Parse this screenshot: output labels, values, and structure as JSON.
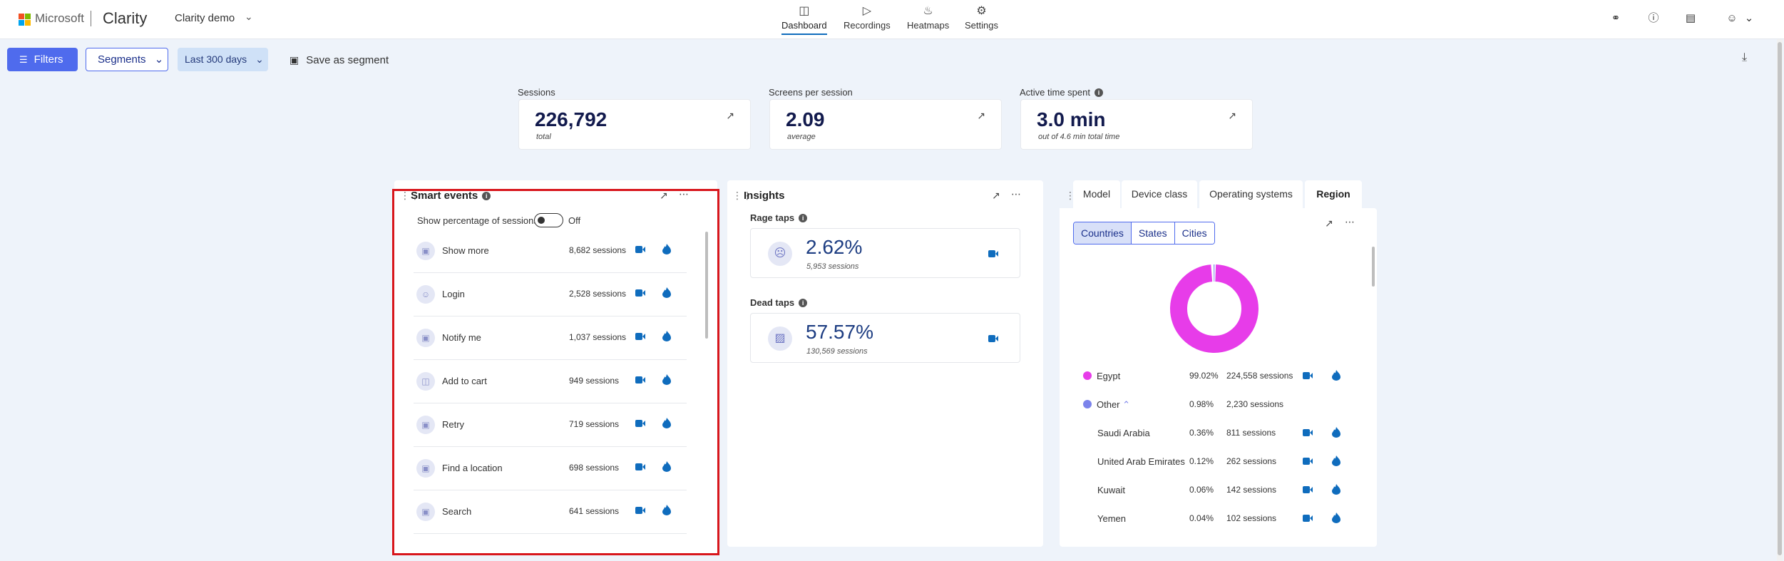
{
  "header": {
    "brand_ms": "Microsoft",
    "brand_app": "Clarity",
    "project": "Clarity demo",
    "nav": [
      {
        "label": "Dashboard",
        "icon": "dashboard-icon",
        "active": true
      },
      {
        "label": "Recordings",
        "icon": "video-icon",
        "active": false
      },
      {
        "label": "Heatmaps",
        "icon": "flame-icon",
        "active": false
      },
      {
        "label": "Settings",
        "icon": "gear-icon",
        "active": false
      }
    ]
  },
  "toolbar": {
    "filters": "Filters",
    "segments": "Segments",
    "date_range": "Last 300 days",
    "save_segment": "Save as segment"
  },
  "kpis": [
    {
      "label": "Sessions",
      "value": "226,792",
      "sub": "total"
    },
    {
      "label": "Screens per session",
      "value": "2.09",
      "sub": "average"
    },
    {
      "label": "Active time spent",
      "value": "3.0 min",
      "sub": "out of 4.6 min total time"
    }
  ],
  "smart_events": {
    "title": "Smart events",
    "toggle_label": "Show percentage of sessions",
    "toggle_state": "Off",
    "rows": [
      {
        "name": "Show more",
        "count": "8,682 sessions"
      },
      {
        "name": "Login",
        "count": "2,528 sessions"
      },
      {
        "name": "Notify me",
        "count": "1,037 sessions"
      },
      {
        "name": "Add to cart",
        "count": "949 sessions"
      },
      {
        "name": "Retry",
        "count": "719 sessions"
      },
      {
        "name": "Find a location",
        "count": "698 sessions"
      },
      {
        "name": "Search",
        "count": "641 sessions"
      }
    ]
  },
  "insights": {
    "title": "Insights",
    "rage": {
      "label": "Rage taps",
      "value": "2.62%",
      "sub": "5,953 sessions"
    },
    "dead": {
      "label": "Dead taps",
      "value": "57.57%",
      "sub": "130,569 sessions"
    }
  },
  "region": {
    "tabs": [
      "Model",
      "Device class",
      "Operating systems",
      "Region"
    ],
    "active_tab": "Region",
    "segments": [
      "Countries",
      "States",
      "Cities"
    ],
    "active_segment": "Countries",
    "donut": [
      {
        "name": "Egypt",
        "percent": 99.02,
        "color": "#e73ce9"
      },
      {
        "name": "Other",
        "percent": 0.98,
        "color": "#7b83eb"
      }
    ],
    "rows": [
      {
        "name": "Egypt",
        "pct": "99.02%",
        "sessions": "224,558 sessions"
      },
      {
        "name": "Other",
        "pct": "0.98%",
        "sessions": "2,230 sessions"
      },
      {
        "name": "Saudi Arabia",
        "pct": "0.36%",
        "sessions": "811 sessions"
      },
      {
        "name": "United Arab Emirates",
        "pct": "0.12%",
        "sessions": "262 sessions"
      },
      {
        "name": "Kuwait",
        "pct": "0.06%",
        "sessions": "142 sessions"
      },
      {
        "name": "Yemen",
        "pct": "0.04%",
        "sessions": "102 sessions"
      }
    ],
    "accent": "#0f6cbd"
  }
}
